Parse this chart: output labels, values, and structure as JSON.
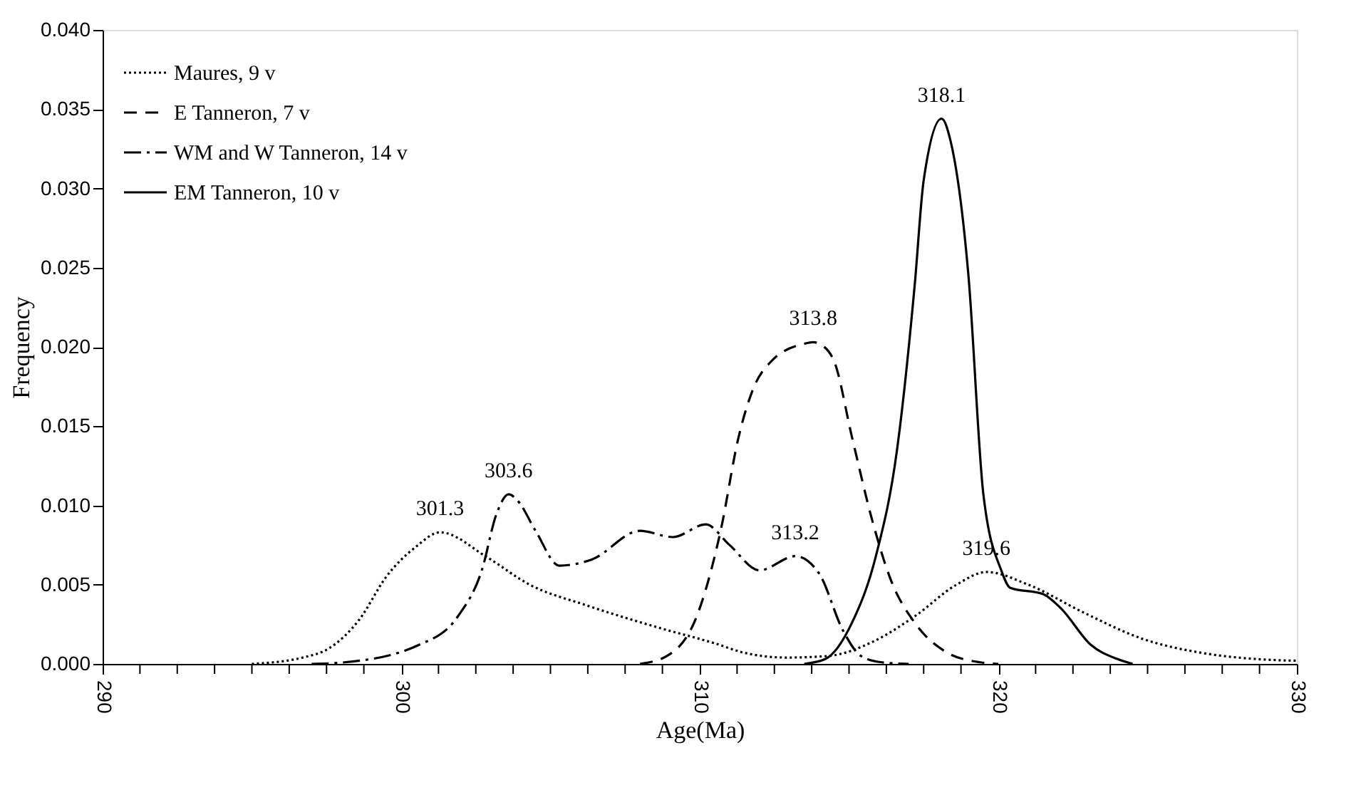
{
  "chart_data": {
    "type": "line",
    "xlabel": "Age(Ma)",
    "ylabel": "Frequency",
    "xlim": [
      290,
      330
    ],
    "ylim": [
      0,
      0.04
    ],
    "xticks": [
      290,
      {
        "value": 291.25,
        "label": null
      },
      {
        "value": 292.5,
        "label": null
      },
      {
        "value": 293.75,
        "label": null
      },
      {
        "value": 295,
        "label": null
      },
      {
        "value": 296.25,
        "label": null
      },
      {
        "value": 297.5,
        "label": null
      },
      {
        "value": 298.75,
        "label": null
      },
      300,
      {
        "value": 301.25,
        "label": null
      },
      {
        "value": 302.5,
        "label": null
      },
      {
        "value": 303.75,
        "label": null
      },
      {
        "value": 305,
        "label": null
      },
      {
        "value": 306.25,
        "label": null
      },
      {
        "value": 307.5,
        "label": null
      },
      {
        "value": 308.75,
        "label": null
      },
      310,
      {
        "value": 311.25,
        "label": null
      },
      {
        "value": 312.5,
        "label": null
      },
      {
        "value": 313.75,
        "label": null
      },
      {
        "value": 315,
        "label": null
      },
      {
        "value": 316.25,
        "label": null
      },
      {
        "value": 317.5,
        "label": null
      },
      {
        "value": 318.75,
        "label": null
      },
      320,
      {
        "value": 321.25,
        "label": null
      },
      {
        "value": 322.5,
        "label": null
      },
      {
        "value": 323.75,
        "label": null
      },
      {
        "value": 325,
        "label": null
      },
      {
        "value": 326.25,
        "label": null
      },
      {
        "value": 327.5,
        "label": null
      },
      {
        "value": 328.75,
        "label": null
      },
      330
    ],
    "yticks": [
      {
        "value": 0,
        "label": "0.000"
      },
      0.005,
      {
        "value": 0.01,
        "label": "0.010"
      },
      0.015,
      {
        "value": 0.02,
        "label": "0.020"
      },
      0.025,
      {
        "value": 0.03,
        "label": "0.030"
      },
      0.035,
      {
        "value": 0.04,
        "label": "0.040"
      }
    ],
    "grid": false,
    "legend": "top left",
    "marker": "none",
    "series": [
      {
        "name": "Maures, 9 v",
        "color": "#000000",
        "line_style": "dotted",
        "x": [
          295.0,
          296.7,
          297.6,
          298.6,
          299.5,
          300.5,
          301.3,
          302.9,
          304.3,
          306.2,
          308.6,
          310.5,
          311.5,
          312.9,
          314.3,
          315.8,
          317.2,
          318.6,
          319.6,
          321.0,
          322.9,
          324.8,
          326.8,
          328.7,
          330.0
        ],
        "values": [
          0.0,
          0.0004,
          0.001,
          0.0028,
          0.0055,
          0.0074,
          0.0083,
          0.0067,
          0.005,
          0.0037,
          0.0023,
          0.0013,
          0.0007,
          0.0004,
          0.0005,
          0.0014,
          0.003,
          0.005,
          0.0058,
          0.005,
          0.0032,
          0.0016,
          0.0007,
          0.0003,
          0.0002
        ]
      },
      {
        "name": "E Tanneron, 7 v",
        "color": "#000000",
        "line_style": "dashed",
        "x": [
          308.0,
          308.9,
          309.9,
          310.7,
          311.3,
          311.8,
          312.4,
          313.5,
          313.8,
          314.0,
          314.5,
          315.1,
          315.8,
          316.4,
          317.2,
          318.3,
          319.4,
          320.0
        ],
        "values": [
          0.0,
          0.0005,
          0.003,
          0.0084,
          0.0143,
          0.0174,
          0.0191,
          0.0202,
          0.0203,
          0.0202,
          0.0191,
          0.0143,
          0.0089,
          0.0053,
          0.0026,
          0.0007,
          0.0001,
          0.0
        ]
      },
      {
        "name": "WM and W Tanneron, 14 v",
        "color": "#000000",
        "line_style": "dashdot",
        "x": [
          297.0,
          298.1,
          300.6,
          301.9,
          302.7,
          303.2,
          303.6,
          303.9,
          304.5,
          305.3,
          306.4,
          308.0,
          309.1,
          310.2,
          311.0,
          312.0,
          313.2,
          314.0,
          314.8,
          315.4,
          316.1,
          317.0
        ],
        "values": [
          0.0,
          0.0001,
          0.0012,
          0.003,
          0.0059,
          0.0095,
          0.0107,
          0.0103,
          0.0084,
          0.0062,
          0.0066,
          0.0084,
          0.008,
          0.0088,
          0.0075,
          0.0059,
          0.0068,
          0.0057,
          0.0021,
          0.0005,
          0.0001,
          0.0
        ]
      },
      {
        "name": "EM Tanneron, 10 v",
        "color": "#000000",
        "line_style": "solid",
        "x": [
          313.5,
          314.2,
          315.1,
          315.9,
          316.6,
          317.2,
          317.5,
          318.1,
          318.4,
          319.0,
          319.5,
          320.1,
          320.4,
          321.5,
          322.1,
          323.1,
          324.0,
          324.5
        ],
        "values": [
          0.0,
          0.0003,
          0.0026,
          0.0068,
          0.0134,
          0.0239,
          0.0305,
          0.0344,
          0.033,
          0.0245,
          0.0107,
          0.0059,
          0.0048,
          0.0044,
          0.0035,
          0.0012,
          0.0003,
          0.0
        ]
      }
    ],
    "annotations": [
      {
        "text": "301.3",
        "x": 301.3,
        "y": 0.0083
      },
      {
        "text": "303.6",
        "x": 303.6,
        "y": 0.0107
      },
      {
        "text": "313.8",
        "x": 313.8,
        "y": 0.0203
      },
      {
        "text": "313.2",
        "x": 313.2,
        "y": 0.0068
      },
      {
        "text": "318.1",
        "x": 318.1,
        "y": 0.0344
      },
      {
        "text": "319.6",
        "x": 319.6,
        "y": 0.0058
      }
    ]
  }
}
